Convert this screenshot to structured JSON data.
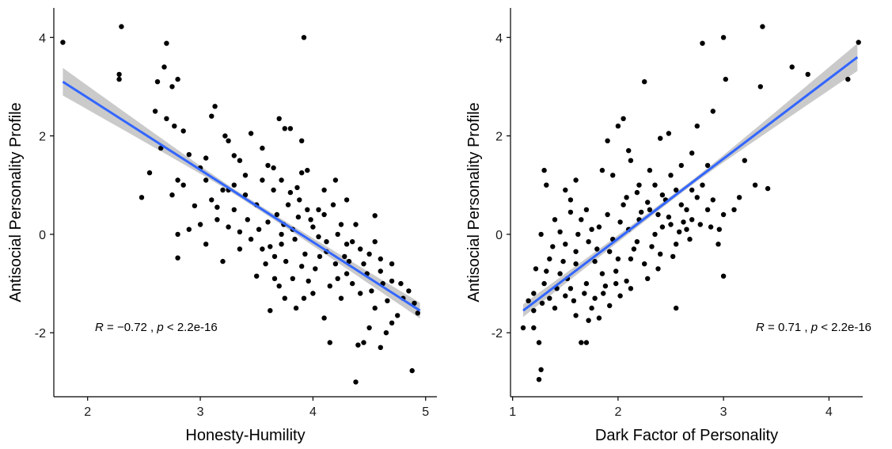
{
  "chart_data": [
    {
      "type": "scatter",
      "xlabel": "Honesty-Humility",
      "ylabel": "Antisocial Personality Profile",
      "xlim": [
        1.7,
        5.1
      ],
      "ylim": [
        -3.3,
        4.6
      ],
      "xticks": [
        2,
        3,
        4,
        5
      ],
      "yticks": [
        -2,
        0,
        2,
        4
      ],
      "xtick_labels": [
        "2",
        "3",
        "4",
        "5"
      ],
      "ytick_labels": [
        "-2",
        "0",
        "2",
        "4"
      ],
      "grid": false,
      "annotation": {
        "r_label": "R",
        "text": " = −0.72 , ",
        "p_label": "p",
        "p_text": " < 2.2e-16"
      },
      "regression": {
        "x": [
          1.78,
          4.95
        ],
        "y": [
          3.1,
          -1.55
        ],
        "band_start": 0.28,
        "band_mid": 0.05,
        "band_end": 0.16,
        "color": "#3366FF",
        "band_color": "#bdbdbd"
      },
      "points": [
        [
          1.78,
          3.9
        ],
        [
          2.3,
          4.22
        ],
        [
          2.28,
          3.25
        ],
        [
          2.28,
          3.15
        ],
        [
          2.7,
          3.88
        ],
        [
          2.68,
          3.4
        ],
        [
          2.8,
          3.15
        ],
        [
          2.62,
          3.1
        ],
        [
          2.75,
          3.0
        ],
        [
          2.6,
          2.5
        ],
        [
          2.7,
          2.35
        ],
        [
          2.77,
          2.2
        ],
        [
          2.85,
          2.1
        ],
        [
          2.65,
          1.75
        ],
        [
          2.9,
          1.62
        ],
        [
          2.55,
          1.25
        ],
        [
          2.48,
          0.75
        ],
        [
          2.8,
          1.1
        ],
        [
          2.75,
          0.8
        ],
        [
          2.85,
          1.0
        ],
        [
          2.9,
          0.1
        ],
        [
          2.8,
          0.0
        ],
        [
          2.8,
          -0.48
        ],
        [
          2.95,
          0.58
        ],
        [
          3.0,
          1.35
        ],
        [
          3.05,
          1.55
        ],
        [
          3.1,
          2.4
        ],
        [
          3.13,
          2.6
        ],
        [
          3.22,
          2.0
        ],
        [
          3.25,
          1.9
        ],
        [
          3.3,
          1.6
        ],
        [
          3.35,
          1.5
        ],
        [
          3.05,
          1.1
        ],
        [
          3.1,
          0.7
        ],
        [
          3.15,
          0.3
        ],
        [
          3.0,
          0.2
        ],
        [
          3.05,
          -0.2
        ],
        [
          3.2,
          -0.55
        ],
        [
          3.25,
          0.9
        ],
        [
          3.3,
          0.5
        ],
        [
          3.35,
          -0.3
        ],
        [
          3.4,
          1.2
        ],
        [
          3.45,
          2.05
        ],
        [
          3.5,
          0.6
        ],
        [
          3.5,
          -0.85
        ],
        [
          3.55,
          1.75
        ],
        [
          3.6,
          1.4
        ],
        [
          3.65,
          0.9
        ],
        [
          3.58,
          -0.6
        ],
        [
          3.7,
          2.35
        ],
        [
          3.75,
          2.15
        ],
        [
          3.8,
          2.15
        ],
        [
          3.9,
          1.9
        ],
        [
          3.95,
          1.3
        ],
        [
          3.92,
          4.0
        ],
        [
          3.62,
          -1.55
        ],
        [
          3.7,
          -1.05
        ],
        [
          3.75,
          -1.3
        ],
        [
          3.85,
          -1.5
        ],
        [
          3.92,
          -1.3
        ],
        [
          4.0,
          -1.2
        ],
        [
          4.1,
          -1.7
        ],
        [
          4.15,
          -2.2
        ],
        [
          4.2,
          1.1
        ],
        [
          4.25,
          0.2
        ],
        [
          4.3,
          -0.2
        ],
        [
          4.35,
          -1.0
        ],
        [
          4.38,
          -3.0
        ],
        [
          4.4,
          -2.25
        ],
        [
          4.45,
          -2.2
        ],
        [
          4.5,
          -1.9
        ],
        [
          4.55,
          -1.5
        ],
        [
          4.6,
          -2.3
        ],
        [
          4.65,
          -2.0
        ],
        [
          4.7,
          -1.8
        ],
        [
          4.75,
          -1.65
        ],
        [
          4.8,
          -1.3
        ],
        [
          4.88,
          -2.77
        ],
        [
          4.9,
          -1.4
        ],
        [
          4.93,
          -1.6
        ],
        [
          4.55,
          0.38
        ],
        [
          4.6,
          -0.5
        ],
        [
          4.7,
          -0.6
        ],
        [
          4.78,
          -1.0
        ],
        [
          4.85,
          -1.15
        ],
        [
          4.3,
          0.7
        ],
        [
          4.1,
          0.9
        ],
        [
          4.05,
          0.5
        ],
        [
          3.98,
          0.3
        ],
        [
          3.88,
          0.7
        ],
        [
          3.82,
          0.1
        ],
        [
          3.72,
          -0.2
        ],
        [
          3.68,
          0.4
        ],
        [
          3.78,
          0.6
        ],
        [
          3.93,
          -0.4
        ],
        [
          4.02,
          -0.7
        ],
        [
          4.12,
          -0.35
        ],
        [
          4.22,
          -0.9
        ],
        [
          4.32,
          -0.55
        ],
        [
          4.42,
          -0.3
        ],
        [
          4.48,
          -0.8
        ],
        [
          4.52,
          -1.15
        ],
        [
          4.62,
          -1.0
        ],
        [
          4.66,
          -1.35
        ],
        [
          4.7,
          -0.95
        ],
        [
          4.42,
          -1.2
        ],
        [
          4.25,
          -1.3
        ],
        [
          4.15,
          -1.05
        ],
        [
          3.52,
          0.1
        ],
        [
          3.45,
          -0.1
        ],
        [
          3.4,
          0.8
        ],
        [
          3.42,
          0.3
        ],
        [
          3.55,
          -0.3
        ],
        [
          3.6,
          0.25
        ],
        [
          3.66,
          -0.9
        ],
        [
          3.76,
          -0.55
        ],
        [
          3.82,
          -0.9
        ],
        [
          3.86,
          0.95
        ],
        [
          3.9,
          1.25
        ],
        [
          3.95,
          0.5
        ],
        [
          4.0,
          0.15
        ],
        [
          4.05,
          -0.05
        ],
        [
          4.1,
          0.4
        ],
        [
          4.18,
          0.6
        ],
        [
          4.22,
          0.0
        ],
        [
          4.28,
          -0.45
        ],
        [
          4.35,
          -0.15
        ],
        [
          4.38,
          0.2
        ],
        [
          4.45,
          -0.6
        ],
        [
          4.5,
          -0.4
        ],
        [
          4.55,
          -0.15
        ],
        [
          4.6,
          -0.75
        ],
        [
          3.3,
          1.0
        ],
        [
          3.2,
          0.9
        ],
        [
          3.15,
          0.55
        ],
        [
          3.25,
          0.15
        ],
        [
          3.35,
          0.05
        ],
        [
          3.55,
          1.1
        ],
        [
          3.65,
          1.35
        ],
        [
          3.72,
          1.1
        ],
        [
          3.8,
          0.85
        ],
        [
          3.87,
          0.35
        ],
        [
          3.72,
          0.0
        ],
        [
          3.62,
          -0.25
        ],
        [
          3.66,
          -0.45
        ],
        [
          3.74,
          0.2
        ],
        [
          3.84,
          -0.1
        ],
        [
          3.9,
          -0.65
        ],
        [
          3.96,
          -0.95
        ],
        [
          4.06,
          -0.45
        ],
        [
          4.12,
          -0.15
        ],
        [
          4.2,
          -0.6
        ],
        [
          4.3,
          -0.8
        ]
      ]
    },
    {
      "type": "scatter",
      "xlabel": "Dark Factor of Personality",
      "ylabel": "Antisocial Personality Profile",
      "xlim": [
        0.98,
        4.32
      ],
      "ylim": [
        -3.3,
        4.6
      ],
      "xticks": [
        1,
        2,
        3,
        4
      ],
      "yticks": [
        -2,
        0,
        2,
        4
      ],
      "xtick_labels": [
        "1",
        "2",
        "3",
        "4"
      ],
      "ytick_labels": [
        "-2",
        "0",
        "2",
        "4"
      ],
      "grid": false,
      "annotation": {
        "r_label": "R",
        "text": " = 0.71 , ",
        "p_label": "p",
        "p_text": " < 2.2e-16"
      },
      "regression": {
        "x": [
          1.1,
          4.27
        ],
        "y": [
          -1.55,
          3.6
        ],
        "band_start": 0.13,
        "band_mid": 0.05,
        "band_end": 0.28,
        "color": "#3366FF",
        "band_color": "#bdbdbd"
      },
      "points": [
        [
          4.28,
          3.9
        ],
        [
          3.37,
          4.22
        ],
        [
          3.0,
          4.0
        ],
        [
          2.8,
          3.88
        ],
        [
          3.65,
          3.4
        ],
        [
          3.8,
          3.25
        ],
        [
          4.18,
          3.15
        ],
        [
          2.25,
          3.1
        ],
        [
          3.02,
          3.15
        ],
        [
          3.35,
          3.0
        ],
        [
          2.9,
          2.5
        ],
        [
          2.75,
          2.2
        ],
        [
          2.48,
          2.05
        ],
        [
          2.4,
          1.95
        ],
        [
          2.7,
          1.65
        ],
        [
          2.85,
          1.4
        ],
        [
          3.2,
          1.5
        ],
        [
          3.3,
          1.0
        ],
        [
          3.42,
          0.93
        ],
        [
          3.15,
          0.75
        ],
        [
          2.96,
          0.1
        ],
        [
          3.0,
          -0.85
        ],
        [
          2.55,
          -1.5
        ],
        [
          1.1,
          -1.9
        ],
        [
          1.2,
          -1.9
        ],
        [
          1.25,
          -2.2
        ],
        [
          1.27,
          -2.75
        ],
        [
          1.25,
          -2.95
        ],
        [
          1.3,
          1.3
        ],
        [
          1.32,
          1.0
        ],
        [
          1.27,
          0.0
        ],
        [
          1.5,
          0.9
        ],
        [
          1.55,
          0.7
        ],
        [
          1.6,
          1.1
        ],
        [
          1.65,
          -2.2
        ],
        [
          1.7,
          -2.2
        ],
        [
          1.75,
          -1.5
        ],
        [
          1.82,
          -1.7
        ],
        [
          2.0,
          2.2
        ],
        [
          2.05,
          2.35
        ],
        [
          2.1,
          1.7
        ],
        [
          1.9,
          1.9
        ],
        [
          1.85,
          1.3
        ],
        [
          1.95,
          1.2
        ],
        [
          2.12,
          1.5
        ],
        [
          2.2,
          1.0
        ],
        [
          2.3,
          1.3
        ],
        [
          2.35,
          1.0
        ],
        [
          2.42,
          0.8
        ],
        [
          2.5,
          1.2
        ],
        [
          2.55,
          0.9
        ],
        [
          2.6,
          1.4
        ],
        [
          2.65,
          0.5
        ],
        [
          2.7,
          0.9
        ],
        [
          2.8,
          1.0
        ],
        [
          2.9,
          0.7
        ],
        [
          3.0,
          0.4
        ],
        [
          3.1,
          0.5
        ],
        [
          2.95,
          -0.2
        ],
        [
          1.2,
          -1.2
        ],
        [
          1.3,
          -1.0
        ],
        [
          1.35,
          -0.5
        ],
        [
          1.4,
          -1.5
        ],
        [
          1.45,
          -0.8
        ],
        [
          1.55,
          -1.1
        ],
        [
          1.5,
          -0.2
        ],
        [
          1.6,
          -0.6
        ],
        [
          1.7,
          -1.0
        ],
        [
          1.65,
          0.3
        ],
        [
          1.75,
          0.1
        ],
        [
          1.8,
          -0.3
        ],
        [
          1.85,
          -0.8
        ],
        [
          1.9,
          0.4
        ],
        [
          1.95,
          -0.1
        ],
        [
          2.0,
          -0.5
        ],
        [
          2.05,
          0.6
        ],
        [
          2.1,
          0.1
        ],
        [
          2.15,
          -0.3
        ],
        [
          2.2,
          0.3
        ],
        [
          2.25,
          -0.6
        ],
        [
          2.3,
          0.5
        ],
        [
          2.35,
          0.0
        ],
        [
          2.4,
          -0.4
        ],
        [
          2.45,
          0.7
        ],
        [
          2.5,
          0.2
        ],
        [
          2.55,
          -0.2
        ],
        [
          2.6,
          0.6
        ],
        [
          2.65,
          0.1
        ],
        [
          2.7,
          0.3
        ],
        [
          2.75,
          0.75
        ],
        [
          2.85,
          0.5
        ],
        [
          1.4,
          0.3
        ],
        [
          1.45,
          0.05
        ],
        [
          1.55,
          0.45
        ],
        [
          1.6,
          -0.35
        ],
        [
          1.7,
          0.5
        ],
        [
          1.78,
          -0.55
        ],
        [
          1.88,
          -1.05
        ],
        [
          1.98,
          -0.75
        ],
        [
          2.08,
          -0.95
        ],
        [
          2.18,
          -0.15
        ],
        [
          2.28,
          -0.9
        ],
        [
          2.38,
          -0.7
        ],
        [
          1.22,
          -0.7
        ],
        [
          1.28,
          -1.4
        ],
        [
          1.35,
          -1.3
        ],
        [
          1.42,
          -1.1
        ],
        [
          1.52,
          -0.9
        ],
        [
          1.58,
          -1.35
        ],
        [
          1.68,
          -1.2
        ],
        [
          1.78,
          -1.3
        ],
        [
          1.92,
          -1.45
        ],
        [
          2.02,
          -1.25
        ],
        [
          2.12,
          -1.1
        ],
        [
          1.62,
          0.0
        ],
        [
          1.72,
          -0.15
        ],
        [
          1.82,
          0.15
        ],
        [
          1.92,
          -0.35
        ],
        [
          2.02,
          0.25
        ],
        [
          2.12,
          -0.5
        ],
        [
          2.22,
          0.45
        ],
        [
          2.32,
          -0.25
        ],
        [
          2.42,
          0.15
        ],
        [
          2.52,
          -0.45
        ],
        [
          2.62,
          0.25
        ],
        [
          1.48,
          -0.55
        ],
        [
          1.38,
          -0.25
        ],
        [
          1.32,
          -0.75
        ],
        [
          1.15,
          -1.35
        ],
        [
          1.2,
          -1.55
        ],
        [
          1.5,
          -1.25
        ],
        [
          1.6,
          -1.65
        ],
        [
          1.72,
          -1.75
        ],
        [
          1.86,
          -1.2
        ],
        [
          1.98,
          -1.0
        ],
        [
          2.08,
          0.75
        ],
        [
          2.18,
          0.85
        ],
        [
          2.28,
          0.65
        ],
        [
          2.38,
          0.4
        ],
        [
          2.48,
          0.35
        ],
        [
          2.58,
          0.05
        ],
        [
          2.68,
          -0.1
        ],
        [
          2.78,
          0.2
        ],
        [
          2.88,
          0.15
        ]
      ]
    }
  ]
}
